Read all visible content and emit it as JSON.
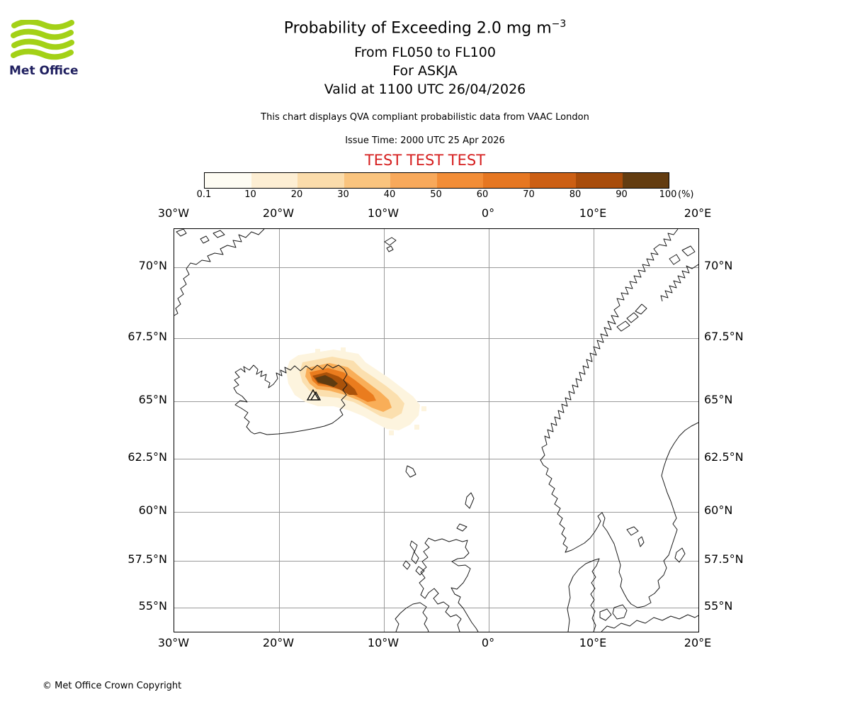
{
  "header": {
    "logo_text": "Met Office",
    "title": "Probability of Exceeding 2.0 mg m",
    "title_exponent": "−3",
    "subtitle1": "From FL050 to FL100",
    "subtitle2": "For ASKJA",
    "subtitle3": "Valid at 1100 UTC 26/04/2026",
    "description": "This chart displays QVA compliant probabilistic data from VAAC London",
    "issue_time": "Issue Time: 2000 UTC 25 Apr 2026",
    "test_banner": "TEST TEST TEST"
  },
  "colorbar": {
    "unit": "(%)",
    "ticks": [
      "0.1",
      "10",
      "20",
      "30",
      "40",
      "50",
      "60",
      "70",
      "80",
      "90",
      "100"
    ],
    "colors": [
      "#fefcf3",
      "#fdeed3",
      "#fbdcab",
      "#fac47e",
      "#f8a95b",
      "#f28d37",
      "#e67722",
      "#cc5f14",
      "#a84c0b",
      "#633c10"
    ]
  },
  "map": {
    "lon_labels": [
      "30°W",
      "20°W",
      "10°W",
      "0°",
      "10°E",
      "20°E"
    ],
    "lat_labels": [
      "70°N",
      "67.5°N",
      "65°N",
      "62.5°N",
      "60°N",
      "57.5°N",
      "55°N"
    ]
  },
  "footer": {
    "copyright": "© Met Office Crown Copyright"
  },
  "chart_data": {
    "type": "heatmap",
    "title": "Probability of Exceeding 2.0 mg m−3",
    "flight_levels": "FL050 to FL100",
    "volcano": "ASKJA",
    "valid_time": "1100 UTC 26/04/2026",
    "issue_time": "2000 UTC 25 Apr 2026",
    "units": "percent probability",
    "colorbar_percent_ticks": [
      0.1,
      10,
      20,
      30,
      40,
      50,
      60,
      70,
      80,
      90,
      100
    ],
    "projection": "mercator",
    "lon_range_deg": [
      -30,
      20
    ],
    "lat_range_deg": [
      53.6,
      71.3
    ],
    "lon_gridlines": [
      -30,
      -20,
      -10,
      0,
      10,
      20
    ],
    "lat_gridlines": [
      70,
      67.5,
      65,
      62.5,
      60,
      57.5,
      55
    ],
    "volcano_location": {
      "lon": -16.8,
      "lat": 65.1
    },
    "plume_contours": [
      {
        "min_percent": 0.1,
        "lon_range": [
          -19.3,
          -6.6
        ],
        "lat_range": [
          63.7,
          67.0
        ]
      },
      {
        "min_percent": 30,
        "lon_range": [
          -18.4,
          -9.5
        ],
        "lat_range": [
          64.2,
          66.4
        ]
      },
      {
        "min_percent": 60,
        "lon_range": [
          -17.7,
          -11.5
        ],
        "lat_range": [
          64.7,
          66.0
        ]
      },
      {
        "min_percent": 90,
        "lon_range": [
          -16.9,
          -14.5
        ],
        "lat_range": [
          65.2,
          65.8
        ]
      }
    ],
    "plume_description": "Ash plume centred over NE Iceland near Askja extending east-southeast over the ocean; highest probabilities (dark brown, >90%) immediately east of the volcano."
  }
}
